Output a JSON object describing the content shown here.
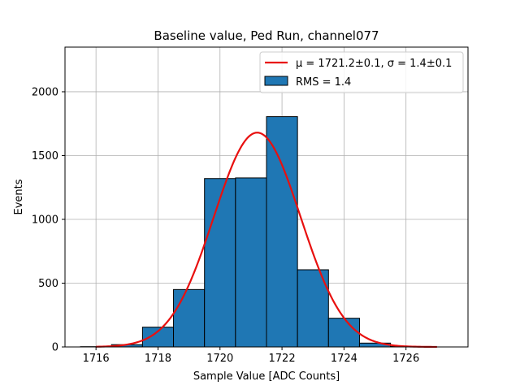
{
  "chart_data": {
    "type": "bar",
    "title": "Baseline value, Ped Run, channel077",
    "xlabel": "Sample Value [ADC Counts]",
    "ylabel": "Events",
    "xlim": [
      1715,
      1728
    ],
    "ylim": [
      0,
      2350
    ],
    "xticks": [
      1716,
      1718,
      1720,
      1722,
      1724,
      1726
    ],
    "yticks": [
      0,
      500,
      1000,
      1500,
      2000
    ],
    "grid": true,
    "bin_edges": [
      1715.5,
      1716.5,
      1717.5,
      1718.5,
      1719.5,
      1720.5,
      1721.5,
      1722.5,
      1723.5,
      1724.5,
      1725.5,
      1726.5
    ],
    "values": [
      2,
      18,
      155,
      450,
      1320,
      1325,
      1805,
      605,
      225,
      30,
      3
    ],
    "bar_color": "#1f77b4",
    "fit": {
      "mu": 1721.2,
      "sigma": 1.4,
      "amplitude": 1680,
      "x_range": [
        1716,
        1727
      ],
      "color": "#e8100f"
    },
    "legend": {
      "placement": "top-right",
      "entries": [
        {
          "label": "μ = 1721.2±0.1, σ = 1.4±0.1",
          "kind": "line"
        },
        {
          "label": "RMS = 1.4",
          "kind": "patch"
        }
      ]
    }
  }
}
